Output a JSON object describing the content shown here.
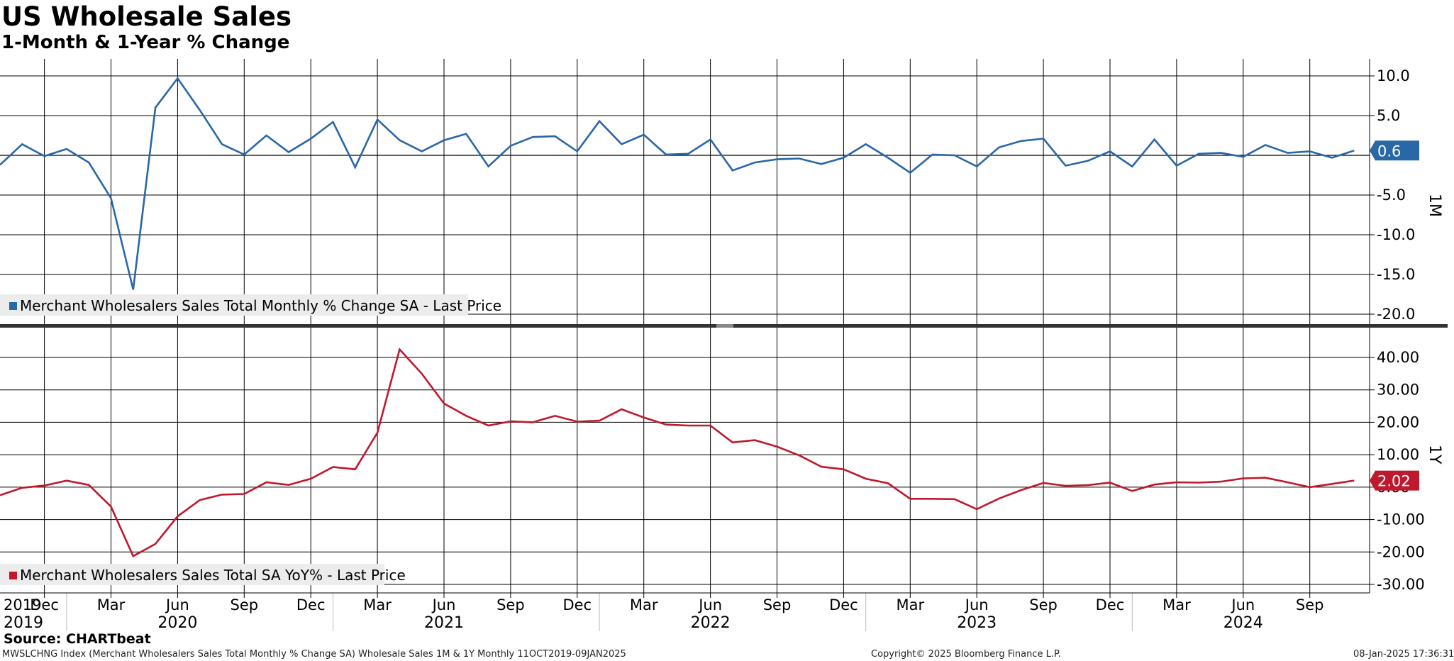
{
  "title": "US Wholesale Sales",
  "subtitle": "1-Month & 1-Year % Change",
  "source": "Source: CHARTbeat",
  "footer": {
    "left": "MWSLCHNG Index (Merchant Wholesalers Sales Total Monthly % Change SA) Wholesale Sales 1M & 1Y  Monthly 11OCT2019-09JAN2025",
    "middle": "Copyright© 2025 Bloomberg Finance L.P.",
    "right": "08-Jan-2025 17:36:31"
  },
  "x_axis": {
    "month_ticks": [
      {
        "label": "Dec",
        "date": "2019-12"
      },
      {
        "label": "Mar",
        "date": "2020-03"
      },
      {
        "label": "Jun",
        "date": "2020-06"
      },
      {
        "label": "Sep",
        "date": "2020-09"
      },
      {
        "label": "Dec",
        "date": "2020-12"
      },
      {
        "label": "Mar",
        "date": "2021-03"
      },
      {
        "label": "Jun",
        "date": "2021-06"
      },
      {
        "label": "Sep",
        "date": "2021-09"
      },
      {
        "label": "Dec",
        "date": "2021-12"
      },
      {
        "label": "Mar",
        "date": "2022-03"
      },
      {
        "label": "Jun",
        "date": "2022-06"
      },
      {
        "label": "Sep",
        "date": "2022-09"
      },
      {
        "label": "Dec",
        "date": "2022-12"
      },
      {
        "label": "Mar",
        "date": "2023-03"
      },
      {
        "label": "Jun",
        "date": "2023-06"
      },
      {
        "label": "Sep",
        "date": "2023-09"
      },
      {
        "label": "Dec",
        "date": "2023-12"
      },
      {
        "label": "Mar",
        "date": "2024-03"
      },
      {
        "label": "Jun",
        "date": "2024-06"
      },
      {
        "label": "Sep",
        "date": "2024-09"
      }
    ],
    "year_labels": [
      {
        "label": "2019",
        "date": "2019-10"
      },
      {
        "label": "2020",
        "date": "2020-06"
      },
      {
        "label": "2021",
        "date": "2021-06"
      },
      {
        "label": "2022",
        "date": "2022-06"
      },
      {
        "label": "2023",
        "date": "2023-06"
      },
      {
        "label": "2024",
        "date": "2024-06"
      }
    ]
  },
  "chart_data": [
    {
      "type": "line",
      "panel_label": "1M",
      "legend": "Merchant Wholesalers Sales Total Monthly % Change SA - Last Price",
      "color": "#2a67a7",
      "ylim": [
        -21,
        12.5
      ],
      "yticks": [
        {
          "value": 10,
          "label": "10.0"
        },
        {
          "value": 5,
          "label": "5.0"
        },
        {
          "value": -5,
          "label": "-5.0"
        },
        {
          "value": -10,
          "label": "-10.0"
        },
        {
          "value": -15,
          "label": "-15.0"
        },
        {
          "value": -20,
          "label": "-20.0"
        }
      ],
      "last_value_label": "0.6",
      "grid": true,
      "series": [
        {
          "name": "Merchant Wholesalers Sales Total Monthly % Change SA",
          "x": [
            "2019-10",
            "2019-11",
            "2019-12",
            "2020-01",
            "2020-02",
            "2020-03",
            "2020-04",
            "2020-05",
            "2020-06",
            "2020-07",
            "2020-08",
            "2020-09",
            "2020-10",
            "2020-11",
            "2020-12",
            "2021-01",
            "2021-02",
            "2021-03",
            "2021-04",
            "2021-05",
            "2021-06",
            "2021-07",
            "2021-08",
            "2021-09",
            "2021-10",
            "2021-11",
            "2021-12",
            "2022-01",
            "2022-02",
            "2022-03",
            "2022-04",
            "2022-05",
            "2022-06",
            "2022-07",
            "2022-08",
            "2022-09",
            "2022-10",
            "2022-11",
            "2022-12",
            "2023-01",
            "2023-02",
            "2023-03",
            "2023-04",
            "2023-05",
            "2023-06",
            "2023-07",
            "2023-08",
            "2023-09",
            "2023-10",
            "2023-11",
            "2023-12",
            "2024-01",
            "2024-02",
            "2024-03",
            "2024-04",
            "2024-05",
            "2024-06",
            "2024-07",
            "2024-08",
            "2024-09",
            "2024-10",
            "2024-11"
          ],
          "values": [
            -1.2,
            1.4,
            -0.1,
            0.8,
            -0.9,
            -5.4,
            -16.9,
            6.0,
            9.7,
            5.7,
            1.4,
            0.1,
            2.5,
            0.4,
            2.1,
            4.2,
            -1.5,
            4.5,
            1.9,
            0.5,
            1.9,
            2.7,
            -1.4,
            1.2,
            2.3,
            2.4,
            0.5,
            4.3,
            1.4,
            2.6,
            0.1,
            0.2,
            2.0,
            -1.9,
            -0.9,
            -0.5,
            -0.4,
            -1.1,
            -0.3,
            1.4,
            -0.3,
            -2.2,
            0.1,
            0.0,
            -1.4,
            1.0,
            1.8,
            2.1,
            -1.3,
            -0.7,
            0.5,
            -1.4,
            2.0,
            -1.3,
            0.2,
            0.3,
            -0.2,
            1.3,
            0.3,
            0.5,
            -0.3,
            0.6
          ]
        }
      ]
    },
    {
      "type": "line",
      "panel_label": "1Y",
      "legend": "Merchant Wholesalers Sales Total SA YoY% - Last Price",
      "color": "#c0182e",
      "ylim": [
        -31,
        45.5
      ],
      "yticks": [
        {
          "value": 40,
          "label": "40.00"
        },
        {
          "value": 30,
          "label": "30.00"
        },
        {
          "value": 20,
          "label": "20.00"
        },
        {
          "value": 10,
          "label": "10.00"
        },
        {
          "value": 0,
          "label": "0.00"
        },
        {
          "value": -10,
          "label": "-10.00"
        },
        {
          "value": -20,
          "label": "-20.00"
        },
        {
          "value": -30,
          "label": "-30.00"
        }
      ],
      "last_value_label": "2.02",
      "grid": true,
      "series": [
        {
          "name": "Merchant Wholesalers Sales Total SA YoY%",
          "x": [
            "2019-10",
            "2019-11",
            "2019-12",
            "2020-01",
            "2020-02",
            "2020-03",
            "2020-04",
            "2020-05",
            "2020-06",
            "2020-07",
            "2020-08",
            "2020-09",
            "2020-10",
            "2020-11",
            "2020-12",
            "2021-01",
            "2021-02",
            "2021-03",
            "2021-04",
            "2021-05",
            "2021-06",
            "2021-07",
            "2021-08",
            "2021-09",
            "2021-10",
            "2021-11",
            "2021-12",
            "2022-01",
            "2022-02",
            "2022-03",
            "2022-04",
            "2022-05",
            "2022-06",
            "2022-07",
            "2022-08",
            "2022-09",
            "2022-10",
            "2022-11",
            "2022-12",
            "2023-01",
            "2023-02",
            "2023-03",
            "2023-04",
            "2023-05",
            "2023-06",
            "2023-07",
            "2023-08",
            "2023-09",
            "2023-10",
            "2023-11",
            "2023-12",
            "2024-01",
            "2024-02",
            "2024-03",
            "2024-04",
            "2024-05",
            "2024-06",
            "2024-07",
            "2024-08",
            "2024-09",
            "2024-10",
            "2024-11"
          ],
          "values": [
            -2.5,
            -0.2,
            0.5,
            2.0,
            0.7,
            -6.0,
            -21.3,
            -17.5,
            -9.0,
            -4.0,
            -2.3,
            -2.1,
            1.5,
            0.7,
            2.6,
            6.2,
            5.5,
            16.8,
            42.5,
            35.0,
            25.8,
            22.0,
            19.0,
            20.3,
            20.0,
            22.0,
            20.2,
            20.5,
            24.0,
            21.5,
            19.3,
            19.0,
            19.0,
            13.8,
            14.5,
            12.5,
            9.8,
            6.3,
            5.5,
            2.6,
            1.2,
            -3.6,
            -3.6,
            -3.7,
            -6.8,
            -3.5,
            -0.9,
            1.3,
            0.4,
            0.6,
            1.4,
            -1.2,
            0.8,
            1.5,
            1.4,
            1.7,
            2.7,
            2.9,
            1.5,
            0.0,
            1.0,
            2.02
          ]
        }
      ]
    }
  ]
}
